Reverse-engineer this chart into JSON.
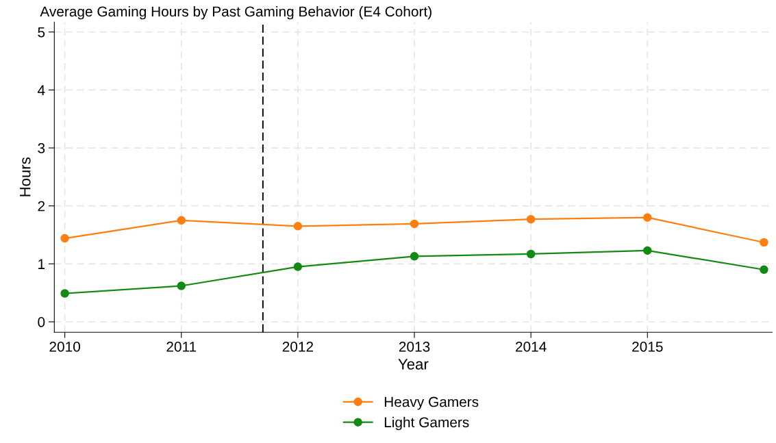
{
  "chart_data": {
    "type": "line",
    "title": "Average Gaming Hours by Past Gaming Behavior (E4 Cohort)",
    "xlabel": "Year",
    "ylabel": "Hours",
    "x": [
      2010,
      2011,
      2012,
      2013,
      2014,
      2015,
      2016
    ],
    "series": [
      {
        "name": "Heavy Gamers",
        "color": "#ff7f0e",
        "values": [
          1.44,
          1.75,
          1.65,
          1.69,
          1.77,
          1.8,
          1.37
        ]
      },
      {
        "name": "Light Gamers",
        "color": "#138a13",
        "values": [
          0.49,
          0.62,
          0.95,
          1.13,
          1.17,
          1.23,
          0.9
        ]
      }
    ],
    "xlim": [
      2009.91,
      2016.07
    ],
    "xticks": [
      2010,
      2011,
      2012,
      2013,
      2014,
      2015
    ],
    "ylim": [
      -0.18,
      5.17
    ],
    "yticks": [
      0,
      1,
      2,
      3,
      4,
      5
    ],
    "ref_lines": [
      {
        "axis": "x",
        "value": 2011.7,
        "label": null,
        "color": "#000000",
        "line_style": "dashed"
      }
    ],
    "grid": true,
    "legend": "bottom",
    "marker": "circle",
    "line_style": "solid"
  }
}
